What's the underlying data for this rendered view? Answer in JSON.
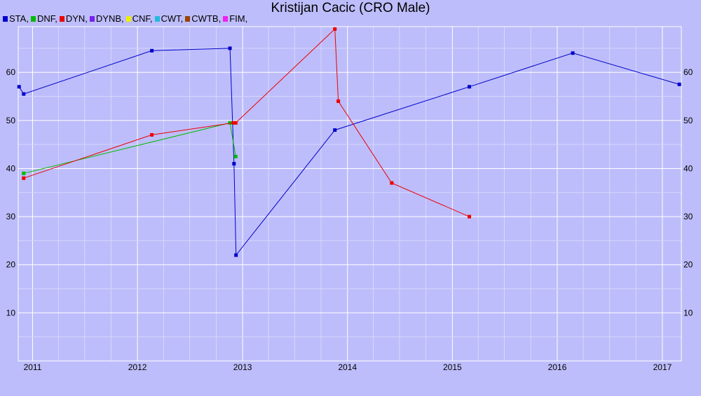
{
  "chart_data": {
    "type": "line",
    "title": "Kristijan Cacic (CRO Male)",
    "legend": [
      {
        "name": "STA,",
        "color": "#0000cc"
      },
      {
        "name": "DNF,",
        "color": "#00bb00"
      },
      {
        "name": "DYN,",
        "color": "#ee0000"
      },
      {
        "name": "DYNB,",
        "color": "#7722ee"
      },
      {
        "name": "CNF,",
        "color": "#eeee00"
      },
      {
        "name": "CWT,",
        "color": "#22bbdd"
      },
      {
        "name": "CWTB,",
        "color": "#994400"
      },
      {
        "name": "FIM,",
        "color": "#ee22ee"
      }
    ],
    "x_ticks": [
      "2011",
      "2012",
      "2013",
      "2014",
      "2015",
      "2016",
      "2017"
    ],
    "y_ticks": [
      10,
      20,
      30,
      40,
      50,
      60
    ],
    "xlim": [
      "2010-11-12",
      "2017-03-08"
    ],
    "ylim": [
      0,
      69.5
    ],
    "grid": true,
    "legend_position": "top-left",
    "series": [
      {
        "name": "STA",
        "color": "#0000cc",
        "points": [
          {
            "x": "2010-11-15",
            "y": 57
          },
          {
            "x": "2010-12-01",
            "y": 55.5
          },
          {
            "x": "2012-02-20",
            "y": 64.5
          },
          {
            "x": "2012-11-18",
            "y": 65
          },
          {
            "x": "2012-12-02",
            "y": 41
          },
          {
            "x": "2012-12-09",
            "y": 22
          },
          {
            "x": "2013-11-18",
            "y": 48
          },
          {
            "x": "2015-03-01",
            "y": 57
          },
          {
            "x": "2016-02-24",
            "y": 64
          },
          {
            "x": "2017-03-01",
            "y": 57.5
          }
        ]
      },
      {
        "name": "DNF",
        "color": "#00bb00",
        "points": [
          {
            "x": "2010-12-01",
            "y": 39
          },
          {
            "x": "2012-11-18",
            "y": 49.5
          },
          {
            "x": "2012-12-08",
            "y": 42.5
          }
        ]
      },
      {
        "name": "DYN",
        "color": "#ee0000",
        "points": [
          {
            "x": "2010-12-01",
            "y": 38
          },
          {
            "x": "2012-02-20",
            "y": 47
          },
          {
            "x": "2012-11-30",
            "y": 49.5
          },
          {
            "x": "2012-12-08",
            "y": 49.5
          },
          {
            "x": "2013-11-18",
            "y": 69
          },
          {
            "x": "2013-11-30",
            "y": 54
          },
          {
            "x": "2014-06-04",
            "y": 37
          },
          {
            "x": "2015-03-01",
            "y": 30
          }
        ]
      }
    ]
  }
}
